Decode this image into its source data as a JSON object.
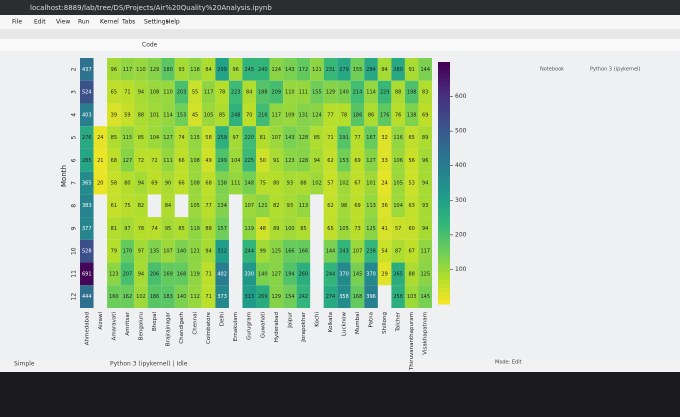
{
  "browser": {
    "url": "localhost:8889/lab/tree/DS/Projects/Air%20Quality%20Analysis.ipynb"
  },
  "menu": [
    "File",
    "Edit",
    "View",
    "Run",
    "Kernel",
    "Tabs",
    "Settings",
    "Help"
  ],
  "toolbar": {
    "cell_type": "Code",
    "notebook": "Notebook",
    "kernel": "Python 3 (ipykernel)"
  },
  "status": {
    "mode_toggle": "Simple",
    "kernel": "Python 3 (ipykernel) | Idle",
    "mode": "Mode: Edit"
  },
  "chart_data": {
    "type": "heatmap",
    "ylabel": "Month",
    "x": [
      "Ahmedabad",
      "Aizawl",
      "Amaravati",
      "Amritsar",
      "Bengaluru",
      "Bhopal",
      "Brajrajnagar",
      "Chandigarh",
      "Chennai",
      "Coimbatore",
      "Delhi",
      "Ernakulam",
      "Gurugram",
      "Guwahati",
      "Hyderabad",
      "Jaipur",
      "Jorapokhar",
      "Kochi",
      "Kolkata",
      "Lucknow",
      "Mumbai",
      "Patna",
      "Shillong",
      "Talcher",
      "Thiruvananthapuram",
      "Visakhapatnam"
    ],
    "y": [
      "2",
      "3",
      "4",
      "5",
      "6",
      "7",
      "8",
      "9",
      "10",
      "11",
      "12"
    ],
    "z": [
      [
        437,
        null,
        96,
        117,
        110,
        129,
        180,
        93,
        118,
        84,
        299,
        96,
        245,
        240,
        124,
        143,
        172,
        121,
        231,
        279,
        155,
        284,
        94,
        280,
        91,
        144
      ],
      [
        524,
        null,
        65,
        71,
        94,
        108,
        110,
        203,
        55,
        117,
        78,
        223,
        84,
        188,
        209,
        110,
        111,
        155,
        129,
        140,
        214,
        114,
        229,
        88,
        198,
        83
      ],
      [
        403,
        null,
        39,
        59,
        88,
        101,
        114,
        153,
        45,
        105,
        85,
        248,
        70,
        216,
        117,
        109,
        131,
        124,
        77,
        78,
        186,
        86,
        176,
        76,
        138,
        69
      ],
      [
        276,
        24,
        85,
        115,
        85,
        104,
        127,
        74,
        115,
        58,
        259,
        97,
        220,
        81,
        107,
        143,
        128,
        85,
        71,
        191,
        77,
        167,
        32,
        116,
        65,
        89
      ],
      [
        285,
        21,
        68,
        127,
        72,
        72,
        111,
        66,
        108,
        49,
        199,
        104,
        225,
        50,
        91,
        123,
        128,
        94,
        62,
        153,
        69,
        127,
        33,
        106,
        56,
        96
      ],
      [
        365,
        20,
        58,
        80,
        94,
        69,
        90,
        66,
        108,
        68,
        138,
        111,
        148,
        75,
        80,
        93,
        88,
        102,
        57,
        102,
        67,
        101,
        24,
        105,
        53,
        94
      ],
      [
        383,
        null,
        61,
        75,
        82,
        null,
        84,
        null,
        105,
        77,
        134,
        null,
        107,
        121,
        82,
        93,
        113,
        null,
        62,
        98,
        69,
        113,
        36,
        104,
        63,
        93
      ],
      [
        377,
        null,
        81,
        97,
        78,
        74,
        95,
        85,
        119,
        88,
        157,
        null,
        119,
        48,
        89,
        100,
        85,
        null,
        65,
        105,
        73,
        125,
        41,
        57,
        60,
        94
      ],
      [
        528,
        null,
        79,
        170,
        97,
        135,
        107,
        140,
        121,
        94,
        312,
        null,
        244,
        99,
        125,
        166,
        166,
        null,
        144,
        243,
        107,
        238,
        54,
        87,
        67,
        117
      ],
      [
        691,
        null,
        123,
        207,
        94,
        206,
        169,
        168,
        119,
        71,
        402,
        null,
        330,
        140,
        127,
        194,
        260,
        null,
        244,
        370,
        145,
        370,
        29,
        265,
        88,
        125
      ],
      [
        444,
        null,
        160,
        162,
        102,
        186,
        183,
        140,
        112,
        71,
        373,
        null,
        313,
        269,
        129,
        154,
        242,
        null,
        274,
        358,
        168,
        396,
        null,
        258,
        103,
        145
      ]
    ],
    "colormap": "viridis_r",
    "zlim": [
      0,
      700
    ],
    "colorbar_ticks": [
      100,
      200,
      300,
      400,
      500,
      600
    ]
  }
}
